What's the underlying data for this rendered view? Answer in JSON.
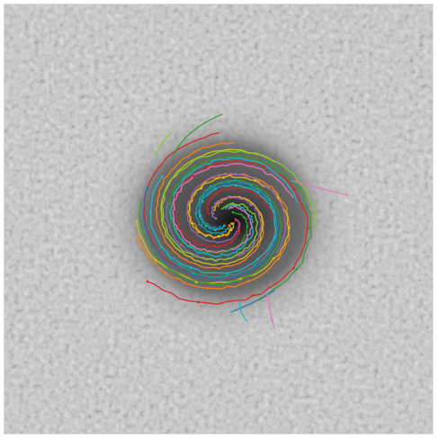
{
  "image": {
    "subject": "spiral-galaxy-with-traced-arm-annotations",
    "background_color": "#c9c9c9",
    "noise_light": "#e6e6e6",
    "noise_dark": "#a9a9a9",
    "galaxy_core_color": "#1c1c1c",
    "galaxy_halo_color": "#6a6a6a"
  },
  "annotation_colors": {
    "red": "#d62728",
    "orange": "#ff7f0e",
    "yellow": "#d4c31a",
    "green": "#2ca02c",
    "cyan": "#17becf",
    "blue": "#1f77b4",
    "purple": "#9467bd",
    "pink": "#e377c2",
    "teal": "#1aa39a",
    "lime": "#7fcf2a"
  }
}
